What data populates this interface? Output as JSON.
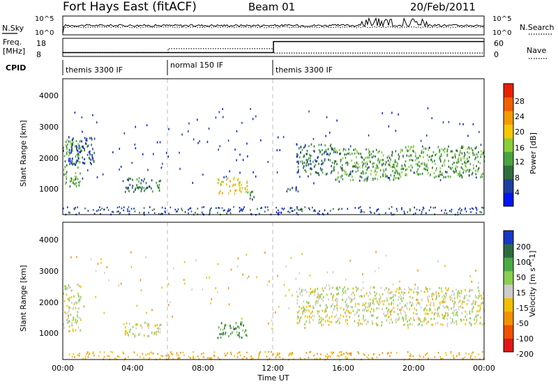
{
  "header": {
    "title": "Fort Hays East (fitACF)",
    "beam": "Beam 01",
    "date": "20/Feb/2011"
  },
  "chart_data": [
    {
      "type": "line",
      "panel": "noise",
      "left_label": "N.Sky",
      "right_label": "N.Search",
      "left_ticks": [
        "10^5",
        "10^0"
      ],
      "right_ticks": [
        "10^5",
        "10^0"
      ],
      "series": [
        {
          "name": "N.Sky",
          "style": "solid"
        },
        {
          "name": "N.Search",
          "style": "dotted"
        }
      ]
    },
    {
      "type": "line",
      "panel": "frequency",
      "left_label_line1": "Freq.",
      "left_label_line2": "[MHz]",
      "right_label": "Nave",
      "left_ticks": [
        "18",
        "8"
      ],
      "right_ticks": [
        "60",
        "0"
      ],
      "series": [
        {
          "name": "Freq.",
          "style": "solid",
          "x": [
            0,
            12,
            12,
            24
          ],
          "y": [
            9.6,
            9.6,
            16.8,
            16.8
          ],
          "ylim": [
            8,
            18
          ]
        },
        {
          "name": "Nave",
          "style": "dotted",
          "x": [
            0,
            6,
            6,
            12,
            12,
            24
          ],
          "y": [
            10,
            10,
            25,
            25,
            8,
            8
          ],
          "ylim": [
            0,
            60
          ]
        }
      ]
    },
    {
      "type": "table",
      "panel": "cpid",
      "label": "CPID",
      "segments": [
        {
          "start": 0,
          "end": 6,
          "label": "themis 3300 IF"
        },
        {
          "start": 6,
          "end": 12,
          "label": "normal 150 IF"
        },
        {
          "start": 12,
          "end": 24,
          "label": "themis 3300 IF"
        }
      ]
    },
    {
      "type": "heatmap",
      "panel": "power",
      "ylabel": "Slant Range [km]",
      "xlim": [
        0,
        24
      ],
      "ylim": [
        200,
        4500
      ],
      "yticks": [
        "1000",
        "2000",
        "3000",
        "4000"
      ],
      "colorbar_label": "Power [dB]",
      "colorbar_ticks": [
        "4",
        "8",
        "12",
        "16",
        "20",
        "24",
        "28"
      ],
      "colorbar_colors": [
        "#0016f0",
        "#1f3fa0",
        "#2f6e3a",
        "#49a33f",
        "#8ccd3a",
        "#f5c800",
        "#f59a00",
        "#f06000",
        "#e82000"
      ],
      "regions": [
        {
          "t0": 0.0,
          "t1": 1.0,
          "r0": 1100,
          "r1": 2600,
          "level": 3
        },
        {
          "t0": 0.3,
          "t1": 1.8,
          "r0": 1800,
          "r1": 2700,
          "level": 1
        },
        {
          "t0": 3.5,
          "t1": 5.6,
          "r0": 950,
          "r1": 1400,
          "level": 2
        },
        {
          "t0": 8.8,
          "t1": 10.5,
          "r0": 900,
          "r1": 1400,
          "level": 5
        },
        {
          "t0": 10.5,
          "t1": 11.0,
          "r0": 700,
          "r1": 1000,
          "level": 2
        },
        {
          "t0": 12.6,
          "t1": 13.4,
          "r0": 900,
          "r1": 1100,
          "level": 1
        },
        {
          "t0": 13.3,
          "t1": 15.5,
          "r0": 1500,
          "r1": 2500,
          "level": 2
        },
        {
          "t0": 15.5,
          "t1": 19.5,
          "r0": 1300,
          "r1": 2300,
          "level": 3
        },
        {
          "t0": 19.5,
          "t1": 24.0,
          "r0": 1400,
          "r1": 2400,
          "level": 3
        }
      ]
    },
    {
      "type": "heatmap",
      "panel": "velocity",
      "ylabel": "Slant Range [km]",
      "xlabel": "Time UT",
      "xlim": [
        0,
        24
      ],
      "ylim": [
        200,
        4500
      ],
      "xticks": [
        "00:00",
        "04:00",
        "08:00",
        "12:00",
        "16:00",
        "20:00",
        "00:00"
      ],
      "yticks": [
        "1000",
        "2000",
        "3000",
        "4000"
      ],
      "colorbar_label": "Velocity [m s^-1]",
      "colorbar_ticks": [
        "200",
        "100",
        "50",
        "15",
        "-15",
        "-50",
        "-100",
        "-200"
      ],
      "colorbar_colors": [
        "#1838c8",
        "#2f6a3f",
        "#4caa45",
        "#88d050",
        "#cccccc",
        "#f0c000",
        "#f59000",
        "#f05000",
        "#e01818"
      ],
      "regions": [
        {
          "t0": 0.0,
          "t1": 1.0,
          "r0": 1100,
          "r1": 2600,
          "level": 4
        },
        {
          "t0": 3.5,
          "t1": 5.6,
          "r0": 950,
          "r1": 1400,
          "level": 4
        },
        {
          "t0": 8.8,
          "t1": 10.5,
          "r0": 900,
          "r1": 1400,
          "level": 2
        },
        {
          "t0": 13.3,
          "t1": 24.0,
          "r0": 1300,
          "r1": 2500,
          "level": 4
        }
      ]
    }
  ]
}
